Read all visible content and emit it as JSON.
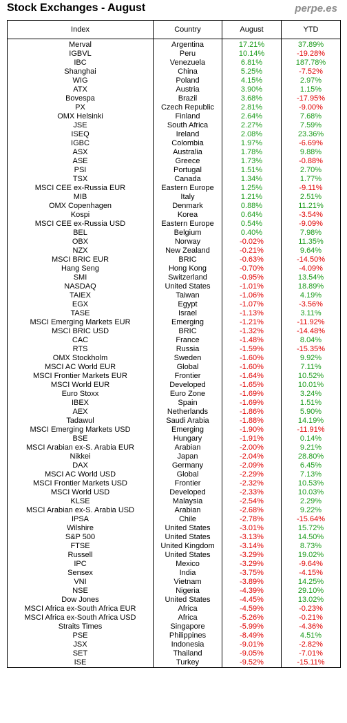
{
  "title": "Stock Exchanges - August",
  "site": "perpe.es",
  "colors": {
    "positive": "#1a9a1a",
    "negative": "#e00000"
  },
  "chart_data": {
    "type": "table",
    "columns": [
      "Index",
      "Country",
      "August",
      "YTD"
    ],
    "rows": [
      [
        "Merval",
        "Argentina",
        "17.21%",
        "37.89%"
      ],
      [
        "IGBVL",
        "Peru",
        "10.14%",
        "-19.28%"
      ],
      [
        "IBC",
        "Venezuela",
        "6.81%",
        "187.78%"
      ],
      [
        "Shanghai",
        "China",
        "5.25%",
        "-7.52%"
      ],
      [
        "WIG",
        "Poland",
        "4.15%",
        "2.97%"
      ],
      [
        "ATX",
        "Austria",
        "3.90%",
        "1.15%"
      ],
      [
        "Bovespa",
        "Brazil",
        "3.68%",
        "-17.95%"
      ],
      [
        "PX",
        "Czech Republic",
        "2.81%",
        "-9.00%"
      ],
      [
        "OMX Helsinki",
        "Finland",
        "2.64%",
        "7.68%"
      ],
      [
        "JSE",
        "South Africa",
        "2.27%",
        "7.59%"
      ],
      [
        "ISEQ",
        "Ireland",
        "2.08%",
        "23.36%"
      ],
      [
        "IGBC",
        "Colombia",
        "1.97%",
        "-6.69%"
      ],
      [
        "ASX",
        "Australia",
        "1.78%",
        "9.88%"
      ],
      [
        "ASE",
        "Greece",
        "1.73%",
        "-0.88%"
      ],
      [
        "PSI",
        "Portugal",
        "1.51%",
        "2.70%"
      ],
      [
        "TSX",
        "Canada",
        "1.34%",
        "1.77%"
      ],
      [
        "MSCI CEE ex-Russia EUR",
        "Eastern Europe",
        "1.25%",
        "-9.11%"
      ],
      [
        "MIB",
        "Italy",
        "1.21%",
        "2.51%"
      ],
      [
        "OMX Copenhagen",
        "Denmark",
        "0.88%",
        "11.21%"
      ],
      [
        "Kospi",
        "Korea",
        "0.64%",
        "-3.54%"
      ],
      [
        "MSCI CEE ex-Russia USD",
        "Eastern Europe",
        "0.54%",
        "-9.09%"
      ],
      [
        "BEL",
        "Belgium",
        "0.40%",
        "7.98%"
      ],
      [
        "OBX",
        "Norway",
        "-0.02%",
        "11.35%"
      ],
      [
        "NZX",
        "New Zealand",
        "-0.21%",
        "9.64%"
      ],
      [
        "MSCI BRIC EUR",
        "BRIC",
        "-0.63%",
        "-14.50%"
      ],
      [
        "Hang Seng",
        "Hong Kong",
        "-0.70%",
        "-4.09%"
      ],
      [
        "SMI",
        "Switzerland",
        "-0.95%",
        "13.54%"
      ],
      [
        "NASDAQ",
        "United States",
        "-1.01%",
        "18.89%"
      ],
      [
        "TAIEX",
        "Taiwan",
        "-1.06%",
        "4.19%"
      ],
      [
        "EGX",
        "Egypt",
        "-1.07%",
        "-3.56%"
      ],
      [
        "TASE",
        "Israel",
        "-1.13%",
        "3.11%"
      ],
      [
        "MSCI Emerging Markets EUR",
        "Emerging",
        "-1.21%",
        "-11.92%"
      ],
      [
        "MSCI BRIC USD",
        "BRIC",
        "-1.32%",
        "-14.48%"
      ],
      [
        "CAC",
        "France",
        "-1.48%",
        "8.04%"
      ],
      [
        "RTS",
        "Russia",
        "-1.59%",
        "-15.35%"
      ],
      [
        "OMX Stockholm",
        "Sweden",
        "-1.60%",
        "9.92%"
      ],
      [
        "MSCI AC World EUR",
        "Global",
        "-1.60%",
        "7.11%"
      ],
      [
        "MSCI Frontier Markets EUR",
        "Frontier",
        "-1.64%",
        "10.52%"
      ],
      [
        "MSCI World EUR",
        "Developed",
        "-1.65%",
        "10.01%"
      ],
      [
        "Euro Stoxx",
        "Euro Zone",
        "-1.69%",
        "3.24%"
      ],
      [
        "IBEX",
        "Spain",
        "-1.69%",
        "1.51%"
      ],
      [
        "AEX",
        "Netherlands",
        "-1.86%",
        "5.90%"
      ],
      [
        "Tadawul",
        "Saudi Arabia",
        "-1.88%",
        "14.19%"
      ],
      [
        "MSCI Emerging Markets USD",
        "Emerging",
        "-1.90%",
        "-11.91%"
      ],
      [
        "BSE",
        "Hungary",
        "-1.91%",
        "0.14%"
      ],
      [
        "MSCI Arabian ex-S. Arabia EUR",
        "Arabian",
        "-2.00%",
        "9.21%"
      ],
      [
        "Nikkei",
        "Japan",
        "-2.04%",
        "28.80%"
      ],
      [
        "DAX",
        "Germany",
        "-2.09%",
        "6.45%"
      ],
      [
        "MSCI AC World USD",
        "Global",
        "-2.29%",
        "7.13%"
      ],
      [
        "MSCI Frontier Markets USD",
        "Frontier",
        "-2.32%",
        "10.53%"
      ],
      [
        "MSCI World USD",
        "Developed",
        "-2.33%",
        "10.03%"
      ],
      [
        "KLSE",
        "Malaysia",
        "-2.54%",
        "2.29%"
      ],
      [
        "MSCI Arabian ex-S. Arabia USD",
        "Arabian",
        "-2.68%",
        "9.22%"
      ],
      [
        "IPSA",
        "Chile",
        "-2.78%",
        "-15.64%"
      ],
      [
        "Wilshire",
        "United States",
        "-3.01%",
        "15.72%"
      ],
      [
        "S&P 500",
        "United States",
        "-3.13%",
        "14.50%"
      ],
      [
        "FTSE",
        "United Kingdom",
        "-3.14%",
        "8.73%"
      ],
      [
        "Russell",
        "United States",
        "-3.29%",
        "19.02%"
      ],
      [
        "IPC",
        "Mexico",
        "-3.29%",
        "-9.64%"
      ],
      [
        "Sensex",
        "India",
        "-3.75%",
        "-4.15%"
      ],
      [
        "VNI",
        "Vietnam",
        "-3.89%",
        "14.25%"
      ],
      [
        "NSE",
        "Nigeria",
        "-4.39%",
        "29.10%"
      ],
      [
        "Dow Jones",
        "United States",
        "-4.45%",
        "13.02%"
      ],
      [
        "MSCI Africa ex-South Africa EUR",
        "Africa",
        "-4.59%",
        "-0.23%"
      ],
      [
        "MSCI Africa ex-South Africa USD",
        "Africa",
        "-5.26%",
        "-0.21%"
      ],
      [
        "Straits Times",
        "Singapore",
        "-5.99%",
        "-4.36%"
      ],
      [
        "PSE",
        "Philippines",
        "-8.49%",
        "4.51%"
      ],
      [
        "JSX",
        "Indonesia",
        "-9.01%",
        "-2.82%"
      ],
      [
        "SET",
        "Thailand",
        "-9.05%",
        "-7.01%"
      ],
      [
        "ISE",
        "Turkey",
        "-9.52%",
        "-15.11%"
      ]
    ]
  }
}
